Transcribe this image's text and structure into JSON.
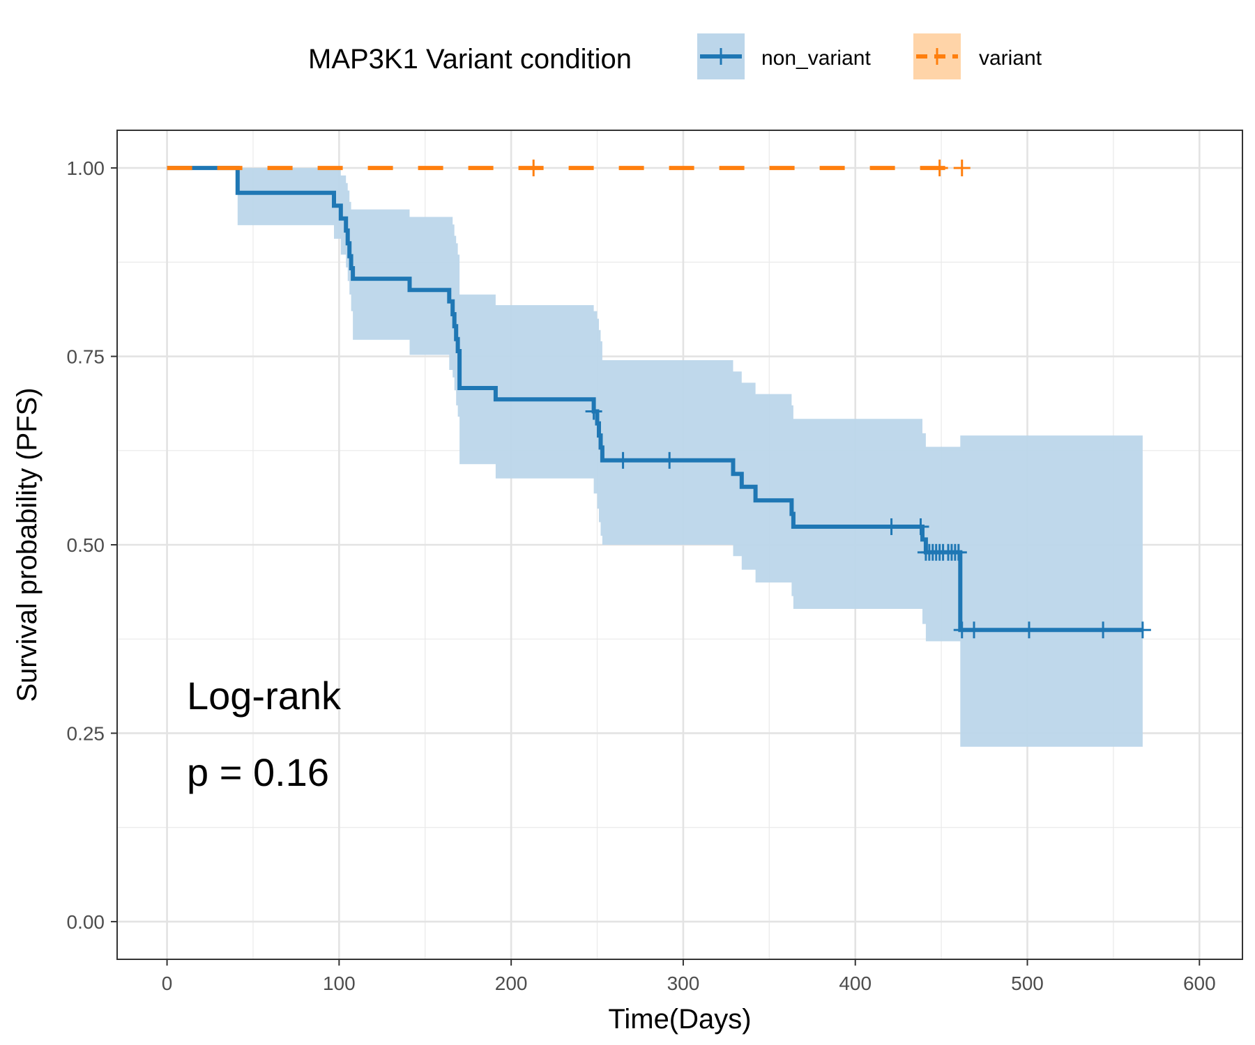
{
  "chart_data": {
    "type": "line",
    "subtype": "kaplan-meier",
    "title": "",
    "xlabel": "Time(Days)",
    "ylabel": "Survival probability (PFS)",
    "xlim": [
      -29,
      625
    ],
    "ylim": [
      -0.05,
      1.05
    ],
    "x_ticks": [
      0,
      100,
      200,
      300,
      400,
      500,
      600
    ],
    "y_ticks": [
      0.0,
      0.25,
      0.5,
      0.75,
      1.0
    ],
    "x_tick_labels": [
      "0",
      "100",
      "200",
      "300",
      "400",
      "500",
      "600"
    ],
    "y_tick_labels": [
      "0.00",
      "0.25",
      "0.50",
      "0.75",
      "1.00"
    ],
    "grid": true,
    "legend": {
      "title": "MAP3K1 Variant condition",
      "position": "top"
    },
    "annotations": {
      "line1": "Log-rank",
      "line2": "p = 0.16"
    },
    "series": [
      {
        "name": "non_variant",
        "color": "#1f77b4",
        "band_color": "#bcd6ea",
        "line_style": "solid",
        "steps": [
          [
            0,
            1.0
          ],
          [
            41,
            0.967
          ],
          [
            97,
            0.95
          ],
          [
            101,
            0.933
          ],
          [
            104,
            0.917
          ],
          [
            105,
            0.9
          ],
          [
            106,
            0.883
          ],
          [
            107,
            0.867
          ],
          [
            108,
            0.853
          ],
          [
            141,
            0.838
          ],
          [
            164,
            0.823
          ],
          [
            166,
            0.806
          ],
          [
            167,
            0.79
          ],
          [
            168,
            0.773
          ],
          [
            169,
            0.757
          ],
          [
            170,
            0.708
          ],
          [
            191,
            0.693
          ],
          [
            248,
            0.677
          ],
          [
            250,
            0.661
          ],
          [
            251,
            0.645
          ],
          [
            252,
            0.629
          ],
          [
            253,
            0.612
          ],
          [
            329,
            0.594
          ],
          [
            334,
            0.577
          ],
          [
            342,
            0.559
          ],
          [
            363,
            0.541
          ],
          [
            364,
            0.524
          ],
          [
            439,
            0.507
          ],
          [
            441,
            0.49
          ],
          [
            461,
            0.387
          ],
          [
            567,
            0.387
          ]
        ],
        "band": [
          [
            0,
            1.0,
            1.0
          ],
          [
            41,
            1.0,
            0.924
          ],
          [
            97,
            1.0,
            0.906
          ],
          [
            101,
            0.99,
            0.885
          ],
          [
            104,
            0.98,
            0.868
          ],
          [
            105,
            0.97,
            0.85
          ],
          [
            106,
            0.955,
            0.832
          ],
          [
            107,
            0.945,
            0.81
          ],
          [
            108,
            0.945,
            0.772
          ],
          [
            141,
            0.935,
            0.752
          ],
          [
            164,
            0.935,
            0.732
          ],
          [
            166,
            0.925,
            0.722
          ],
          [
            167,
            0.91,
            0.705
          ],
          [
            168,
            0.9,
            0.685
          ],
          [
            169,
            0.885,
            0.67
          ],
          [
            170,
            0.832,
            0.607
          ],
          [
            191,
            0.818,
            0.588
          ],
          [
            248,
            0.81,
            0.568
          ],
          [
            250,
            0.8,
            0.548
          ],
          [
            251,
            0.785,
            0.53
          ],
          [
            252,
            0.77,
            0.512
          ],
          [
            253,
            0.745,
            0.5
          ],
          [
            329,
            0.73,
            0.485
          ],
          [
            334,
            0.715,
            0.467
          ],
          [
            342,
            0.7,
            0.45
          ],
          [
            363,
            0.685,
            0.432
          ],
          [
            364,
            0.667,
            0.415
          ],
          [
            439,
            0.648,
            0.395
          ],
          [
            441,
            0.63,
            0.372
          ],
          [
            461,
            0.645,
            0.232
          ],
          [
            567,
            0.645,
            0.232
          ]
        ],
        "censor_times": [
          248,
          265,
          292,
          421,
          438,
          441,
          443,
          445,
          447,
          449,
          451,
          454,
          456,
          458,
          460,
          462,
          469,
          501,
          544,
          567
        ]
      },
      {
        "name": "variant",
        "color": "#ff7f0e",
        "band_color": "#ffd4a8",
        "line_style": "dashed",
        "steps": [
          [
            0,
            1.0
          ],
          [
            462,
            1.0
          ]
        ],
        "band": [
          [
            0,
            1.0,
            1.0
          ],
          [
            462,
            1.0,
            1.0
          ]
        ],
        "censor_times": [
          213,
          449,
          462
        ]
      }
    ]
  }
}
